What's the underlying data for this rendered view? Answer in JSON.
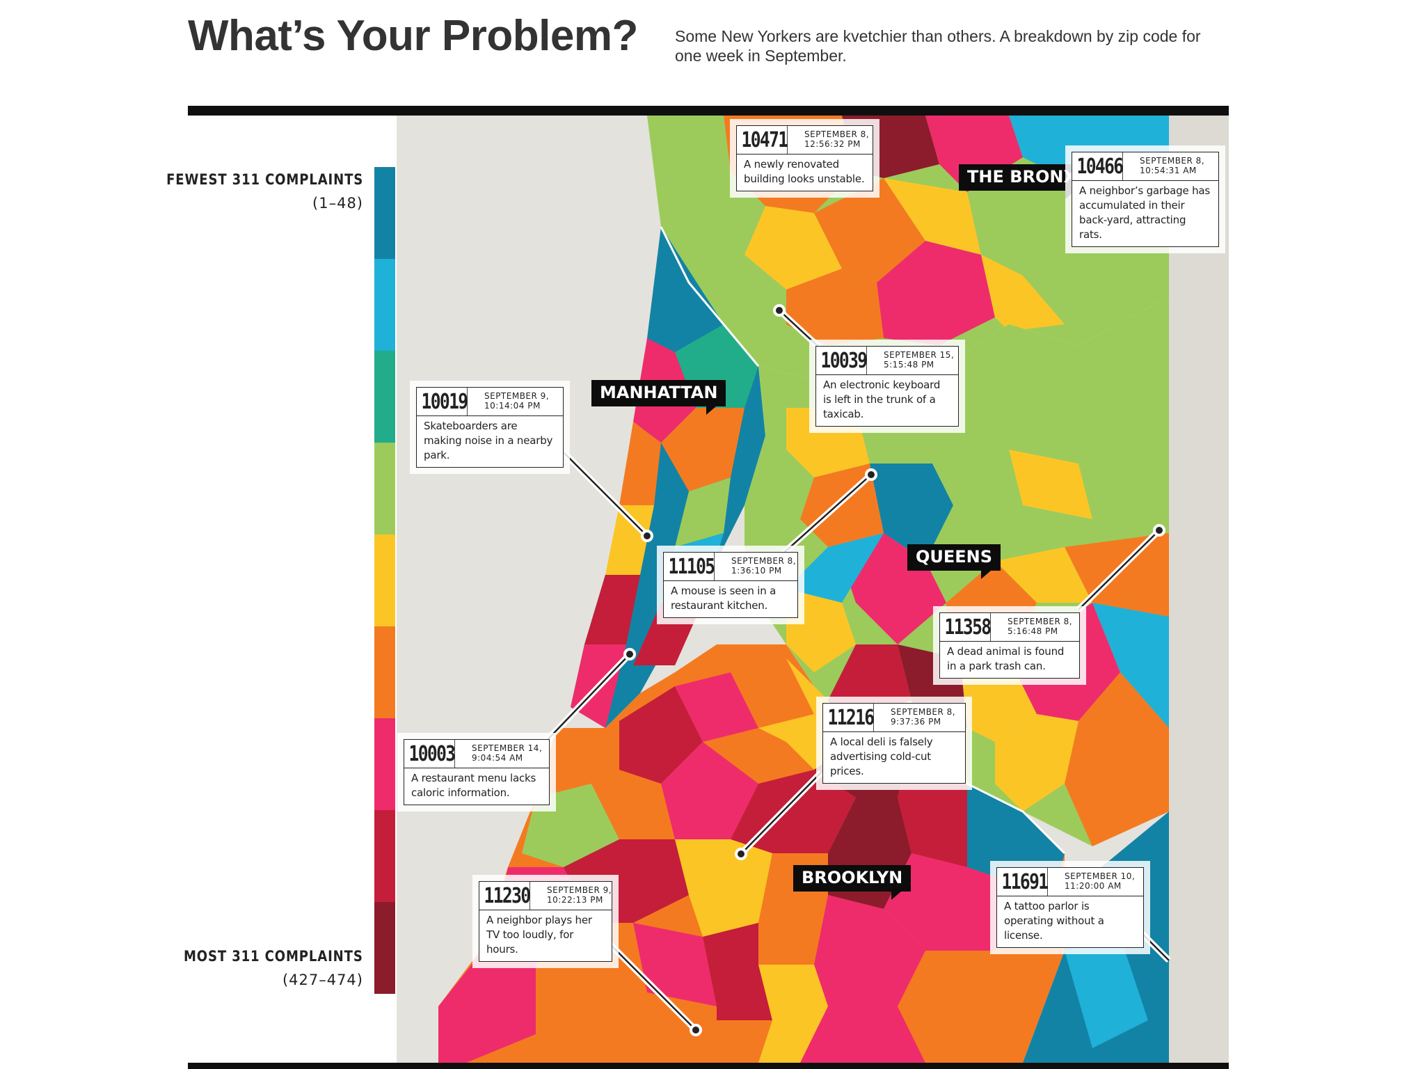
{
  "header": {
    "title": "What’s Your Problem?",
    "subtitle": "Some New Yorkers are kvetchier than others. A breakdown by zip code for one week in September."
  },
  "legend": {
    "fewest_label": "FEWEST 311 COMPLAINTS",
    "fewest_range": "(1–48)",
    "most_label": "MOST 311 COMPLAINTS",
    "most_range": "(427–474)",
    "colors": [
      "#1383a5",
      "#1fb1d8",
      "#21ad8a",
      "#9ccb5c",
      "#fbc526",
      "#f47a21",
      "#ee2c6c",
      "#c41e3a",
      "#8c1c2c"
    ]
  },
  "boroughs": {
    "bronx": "THE BRONX",
    "manhattan": "MANHATTAN",
    "queens": "QUEENS",
    "brooklyn": "BROOKLYN"
  },
  "callouts": [
    {
      "zip": "10471",
      "date": "SEPTEMBER 8,",
      "time": "12:56:32 PM",
      "text": "A newly renovated building looks unstable."
    },
    {
      "zip": "10466",
      "date": "SEPTEMBER 8,",
      "time": "10:54:31 AM",
      "text": "A neighbor’s garbage has accumulated in their back-yard, attracting rats."
    },
    {
      "zip": "10039",
      "date": "SEPTEMBER 15,",
      "time": "5:15:48 PM",
      "text": "An electronic keyboard is left in the trunk of a taxicab."
    },
    {
      "zip": "10019",
      "date": "SEPTEMBER 9,",
      "time": "10:14:04 PM",
      "text": "Skateboarders are making noise in a nearby park."
    },
    {
      "zip": "11105",
      "date": "SEPTEMBER 8,",
      "time": "1:36:10 PM",
      "text": "A mouse is seen in a restaurant kitchen."
    },
    {
      "zip": "11358",
      "date": "SEPTEMBER 8,",
      "time": "5:16:48 PM",
      "text": "A dead animal is found in a park trash can."
    },
    {
      "zip": "11216",
      "date": "SEPTEMBER 8,",
      "time": "9:37:36 PM",
      "text": "A local deli is falsely advertising cold-cut prices."
    },
    {
      "zip": "10003",
      "date": "SEPTEMBER 14,",
      "time": "9:04:54 AM",
      "text": "A restaurant menu lacks caloric information."
    },
    {
      "zip": "11691",
      "date": "SEPTEMBER 10,",
      "time": "11:20:00 AM",
      "text": "A tattoo parlor is operating without a license."
    },
    {
      "zip": "11230",
      "date": "SEPTEMBER 9,",
      "time": "10:22:13 PM",
      "text": "A neighbor plays her TV too loudly, for hours."
    }
  ]
}
